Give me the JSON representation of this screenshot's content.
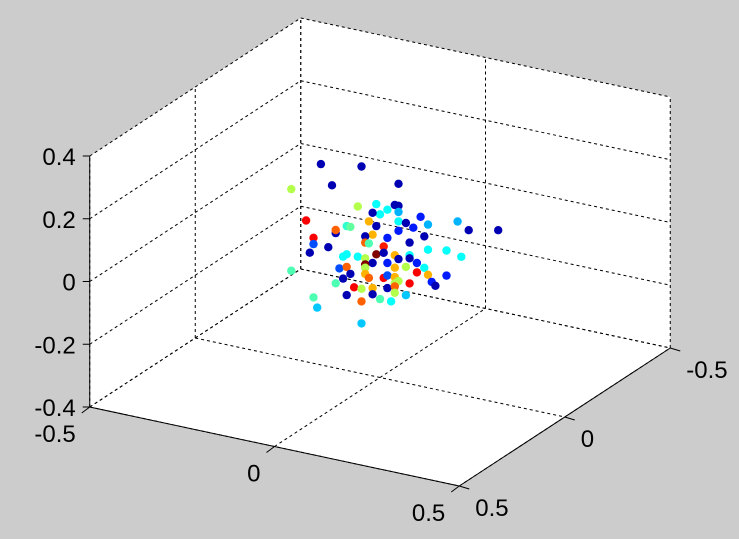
{
  "chart_data": {
    "type": "scatter3d",
    "title": "",
    "xlabel": "",
    "ylabel": "",
    "zlabel": "",
    "xlim": [
      -0.5,
      0.5
    ],
    "ylim": [
      -0.5,
      0.5
    ],
    "zlim": [
      -0.4,
      0.4
    ],
    "grid": true,
    "colormap": "jet",
    "background_color": "#cccccc",
    "axes_color": "#ffffff",
    "x_ticks": [
      {
        "v": -0.5,
        "label": "-0.5"
      },
      {
        "v": 0,
        "label": "0"
      },
      {
        "v": 0.5,
        "label": "0.5"
      }
    ],
    "y_ticks": [
      {
        "v": 0.5,
        "label": "0.5"
      },
      {
        "v": 0,
        "label": "0"
      },
      {
        "v": -0.5,
        "label": "-0.5"
      }
    ],
    "z_ticks": [
      {
        "v": 0.4,
        "label": "0.4"
      },
      {
        "v": 0.2,
        "label": "0.2"
      },
      {
        "v": 0,
        "label": "0"
      },
      {
        "v": -0.2,
        "label": "-0.2"
      },
      {
        "v": -0.4,
        "label": "-0.4"
      }
    ],
    "points": {
      "x": [
        -0.16,
        -0.05,
        -0.13,
        0.05,
        -0.24,
        -0.06,
        -0.01,
        0.04,
        0.05,
        0.02,
        0.0,
        -0.02,
        0.05,
        -0.2,
        -0.03,
        0.05,
        0.07,
        0.11,
        0.13,
        0.09,
        0.21,
        0.24,
        0.32,
        -0.09,
        -0.08,
        -0.12,
        -0.12,
        -0.01,
        -0.02,
        0.05,
        -0.18,
        -0.04,
        0.02,
        0.12,
        -0.04,
        -0.03,
        0.08,
        -0.18,
        -0.14,
        0.01,
        -0.19,
        0.13,
        0.18,
        0.22,
        -0.1,
        -0.09,
        -0.06,
        -0.04,
        -0.01,
        0.01,
        0.04,
        0.08,
        0.08,
        0.05,
        0.02,
        -0.02,
        -0.04,
        0.04,
        0.07,
        0.1,
        0.12,
        -0.11,
        -0.09,
        -0.04,
        -0.04,
        0.01,
        0.02,
        0.1,
        0.13,
        0.18,
        -0.1,
        -0.08,
        -0.03,
        0.04,
        0.04,
        0.05,
        0.08,
        0.14,
        0.15,
        -0.24,
        -0.12,
        -0.07,
        -0.05,
        -0.02,
        0.02,
        0.04,
        -0.09,
        -0.02,
        0.0,
        0.04,
        0.07,
        -0.18,
        -0.17,
        -0.05,
        0.03,
        -0.05
      ],
      "y": [
        0,
        0,
        0,
        0,
        0,
        0,
        0,
        0,
        0,
        0,
        0,
        0,
        0,
        0,
        0,
        0,
        0,
        0,
        0,
        0,
        0,
        0,
        0,
        0,
        0,
        0,
        0,
        0,
        0,
        0,
        0,
        0,
        0,
        0,
        0,
        0,
        0,
        0,
        0,
        0,
        0,
        0,
        0,
        0,
        0,
        0,
        0,
        0,
        0,
        0,
        0,
        0,
        0,
        0,
        0,
        0,
        0,
        0,
        0,
        0,
        0,
        0,
        0,
        0,
        0,
        0,
        0,
        0,
        0,
        0,
        0,
        0,
        0,
        0,
        0,
        0,
        0,
        0,
        0,
        0,
        0,
        0,
        0,
        0,
        0,
        0,
        0,
        0,
        0,
        0,
        0,
        0,
        0,
        0,
        0,
        0
      ],
      "z": [
        0.24,
        0.26,
        0.18,
        0.23,
        0.14,
        0.13,
        0.15,
        0.16,
        0.16,
        0.14,
        0.12,
        0.12,
        0.14,
        0.05,
        0.09,
        0.11,
        0.11,
        0.14,
        0.12,
        0.1,
        0.15,
        0.13,
        0.15,
        0.06,
        0.06,
        0.03,
        0.04,
        0.08,
        0.05,
        0.08,
        0.0,
        0.04,
        0.05,
        0.08,
        0.02,
        0.02,
        0.05,
        -0.02,
        -0.02,
        0.02,
        -0.05,
        0.04,
        0.05,
        0.04,
        -0.04,
        -0.03,
        -0.03,
        -0.03,
        -0.01,
        0.0,
        0.0,
        0.01,
        0.0,
        -0.01,
        -0.03,
        -0.04,
        -0.05,
        -0.04,
        -0.03,
        -0.01,
        -0.02,
        -0.08,
        -0.07,
        -0.06,
        -0.08,
        -0.08,
        -0.07,
        -0.04,
        -0.04,
        -0.03,
        -0.11,
        -0.09,
        -0.09,
        -0.07,
        -0.09,
        -0.08,
        -0.08,
        -0.06,
        -0.07,
        -0.12,
        -0.13,
        -0.13,
        -0.13,
        -0.12,
        -0.11,
        -0.1,
        -0.16,
        -0.14,
        -0.15,
        -0.12,
        -0.12,
        -0.19,
        -0.22,
        -0.17,
        -0.15,
        -0.24
      ],
      "c": [
        0.05,
        0.05,
        0.05,
        0.05,
        0.55,
        0.55,
        0.38,
        0.05,
        0.05,
        0.38,
        0.38,
        0.05,
        0.3,
        0.88,
        0.7,
        0.38,
        0.05,
        0.15,
        0.3,
        0.15,
        0.3,
        0.05,
        0.05,
        0.42,
        0.47,
        0.05,
        0.78,
        0.05,
        0.7,
        0.15,
        0.88,
        0.05,
        0.15,
        0.05,
        0.78,
        0.45,
        0.05,
        0.2,
        0.05,
        0.85,
        0.05,
        0.38,
        0.38,
        0.38,
        0.38,
        0.38,
        0.38,
        0.55,
        1.0,
        0.05,
        0.7,
        0.38,
        0.05,
        0.05,
        0.15,
        0.05,
        1.0,
        0.7,
        0.55,
        0.15,
        0.38,
        0.2,
        0.78,
        0.55,
        0.7,
        0.88,
        0.2,
        0.88,
        0.7,
        0.15,
        0.05,
        0.05,
        0.78,
        0.7,
        0.55,
        0.55,
        0.88,
        0.15,
        0.05,
        0.45,
        0.45,
        0.88,
        0.55,
        0.7,
        0.05,
        0.78,
        0.05,
        0.05,
        0.45,
        0.55,
        0.32,
        0.45,
        0.32,
        0.78,
        0.38,
        0.32
      ]
    }
  }
}
